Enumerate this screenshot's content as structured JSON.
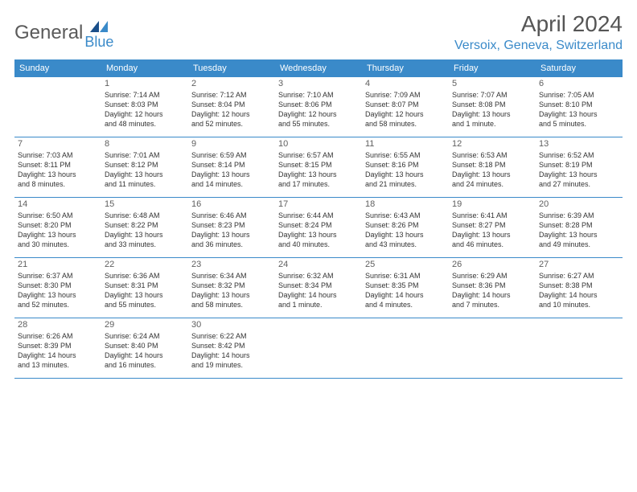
{
  "brand": {
    "general": "General",
    "blue": "Blue"
  },
  "title": "April 2024",
  "location": "Versoix, Geneva, Switzerland",
  "colors": {
    "accent": "#3a8ac9",
    "text": "#333333",
    "muted": "#5f5f5f",
    "bg": "#ffffff"
  },
  "daysOfWeek": [
    "Sunday",
    "Monday",
    "Tuesday",
    "Wednesday",
    "Thursday",
    "Friday",
    "Saturday"
  ],
  "weeks": [
    [
      {
        "num": "",
        "sunrise": "",
        "sunset": "",
        "daylight1": "",
        "daylight2": ""
      },
      {
        "num": "1",
        "sunrise": "Sunrise: 7:14 AM",
        "sunset": "Sunset: 8:03 PM",
        "daylight1": "Daylight: 12 hours",
        "daylight2": "and 48 minutes."
      },
      {
        "num": "2",
        "sunrise": "Sunrise: 7:12 AM",
        "sunset": "Sunset: 8:04 PM",
        "daylight1": "Daylight: 12 hours",
        "daylight2": "and 52 minutes."
      },
      {
        "num": "3",
        "sunrise": "Sunrise: 7:10 AM",
        "sunset": "Sunset: 8:06 PM",
        "daylight1": "Daylight: 12 hours",
        "daylight2": "and 55 minutes."
      },
      {
        "num": "4",
        "sunrise": "Sunrise: 7:09 AM",
        "sunset": "Sunset: 8:07 PM",
        "daylight1": "Daylight: 12 hours",
        "daylight2": "and 58 minutes."
      },
      {
        "num": "5",
        "sunrise": "Sunrise: 7:07 AM",
        "sunset": "Sunset: 8:08 PM",
        "daylight1": "Daylight: 13 hours",
        "daylight2": "and 1 minute."
      },
      {
        "num": "6",
        "sunrise": "Sunrise: 7:05 AM",
        "sunset": "Sunset: 8:10 PM",
        "daylight1": "Daylight: 13 hours",
        "daylight2": "and 5 minutes."
      }
    ],
    [
      {
        "num": "7",
        "sunrise": "Sunrise: 7:03 AM",
        "sunset": "Sunset: 8:11 PM",
        "daylight1": "Daylight: 13 hours",
        "daylight2": "and 8 minutes."
      },
      {
        "num": "8",
        "sunrise": "Sunrise: 7:01 AM",
        "sunset": "Sunset: 8:12 PM",
        "daylight1": "Daylight: 13 hours",
        "daylight2": "and 11 minutes."
      },
      {
        "num": "9",
        "sunrise": "Sunrise: 6:59 AM",
        "sunset": "Sunset: 8:14 PM",
        "daylight1": "Daylight: 13 hours",
        "daylight2": "and 14 minutes."
      },
      {
        "num": "10",
        "sunrise": "Sunrise: 6:57 AM",
        "sunset": "Sunset: 8:15 PM",
        "daylight1": "Daylight: 13 hours",
        "daylight2": "and 17 minutes."
      },
      {
        "num": "11",
        "sunrise": "Sunrise: 6:55 AM",
        "sunset": "Sunset: 8:16 PM",
        "daylight1": "Daylight: 13 hours",
        "daylight2": "and 21 minutes."
      },
      {
        "num": "12",
        "sunrise": "Sunrise: 6:53 AM",
        "sunset": "Sunset: 8:18 PM",
        "daylight1": "Daylight: 13 hours",
        "daylight2": "and 24 minutes."
      },
      {
        "num": "13",
        "sunrise": "Sunrise: 6:52 AM",
        "sunset": "Sunset: 8:19 PM",
        "daylight1": "Daylight: 13 hours",
        "daylight2": "and 27 minutes."
      }
    ],
    [
      {
        "num": "14",
        "sunrise": "Sunrise: 6:50 AM",
        "sunset": "Sunset: 8:20 PM",
        "daylight1": "Daylight: 13 hours",
        "daylight2": "and 30 minutes."
      },
      {
        "num": "15",
        "sunrise": "Sunrise: 6:48 AM",
        "sunset": "Sunset: 8:22 PM",
        "daylight1": "Daylight: 13 hours",
        "daylight2": "and 33 minutes."
      },
      {
        "num": "16",
        "sunrise": "Sunrise: 6:46 AM",
        "sunset": "Sunset: 8:23 PM",
        "daylight1": "Daylight: 13 hours",
        "daylight2": "and 36 minutes."
      },
      {
        "num": "17",
        "sunrise": "Sunrise: 6:44 AM",
        "sunset": "Sunset: 8:24 PM",
        "daylight1": "Daylight: 13 hours",
        "daylight2": "and 40 minutes."
      },
      {
        "num": "18",
        "sunrise": "Sunrise: 6:43 AM",
        "sunset": "Sunset: 8:26 PM",
        "daylight1": "Daylight: 13 hours",
        "daylight2": "and 43 minutes."
      },
      {
        "num": "19",
        "sunrise": "Sunrise: 6:41 AM",
        "sunset": "Sunset: 8:27 PM",
        "daylight1": "Daylight: 13 hours",
        "daylight2": "and 46 minutes."
      },
      {
        "num": "20",
        "sunrise": "Sunrise: 6:39 AM",
        "sunset": "Sunset: 8:28 PM",
        "daylight1": "Daylight: 13 hours",
        "daylight2": "and 49 minutes."
      }
    ],
    [
      {
        "num": "21",
        "sunrise": "Sunrise: 6:37 AM",
        "sunset": "Sunset: 8:30 PM",
        "daylight1": "Daylight: 13 hours",
        "daylight2": "and 52 minutes."
      },
      {
        "num": "22",
        "sunrise": "Sunrise: 6:36 AM",
        "sunset": "Sunset: 8:31 PM",
        "daylight1": "Daylight: 13 hours",
        "daylight2": "and 55 minutes."
      },
      {
        "num": "23",
        "sunrise": "Sunrise: 6:34 AM",
        "sunset": "Sunset: 8:32 PM",
        "daylight1": "Daylight: 13 hours",
        "daylight2": "and 58 minutes."
      },
      {
        "num": "24",
        "sunrise": "Sunrise: 6:32 AM",
        "sunset": "Sunset: 8:34 PM",
        "daylight1": "Daylight: 14 hours",
        "daylight2": "and 1 minute."
      },
      {
        "num": "25",
        "sunrise": "Sunrise: 6:31 AM",
        "sunset": "Sunset: 8:35 PM",
        "daylight1": "Daylight: 14 hours",
        "daylight2": "and 4 minutes."
      },
      {
        "num": "26",
        "sunrise": "Sunrise: 6:29 AM",
        "sunset": "Sunset: 8:36 PM",
        "daylight1": "Daylight: 14 hours",
        "daylight2": "and 7 minutes."
      },
      {
        "num": "27",
        "sunrise": "Sunrise: 6:27 AM",
        "sunset": "Sunset: 8:38 PM",
        "daylight1": "Daylight: 14 hours",
        "daylight2": "and 10 minutes."
      }
    ],
    [
      {
        "num": "28",
        "sunrise": "Sunrise: 6:26 AM",
        "sunset": "Sunset: 8:39 PM",
        "daylight1": "Daylight: 14 hours",
        "daylight2": "and 13 minutes."
      },
      {
        "num": "29",
        "sunrise": "Sunrise: 6:24 AM",
        "sunset": "Sunset: 8:40 PM",
        "daylight1": "Daylight: 14 hours",
        "daylight2": "and 16 minutes."
      },
      {
        "num": "30",
        "sunrise": "Sunrise: 6:22 AM",
        "sunset": "Sunset: 8:42 PM",
        "daylight1": "Daylight: 14 hours",
        "daylight2": "and 19 minutes."
      },
      {
        "num": "",
        "sunrise": "",
        "sunset": "",
        "daylight1": "",
        "daylight2": ""
      },
      {
        "num": "",
        "sunrise": "",
        "sunset": "",
        "daylight1": "",
        "daylight2": ""
      },
      {
        "num": "",
        "sunrise": "",
        "sunset": "",
        "daylight1": "",
        "daylight2": ""
      },
      {
        "num": "",
        "sunrise": "",
        "sunset": "",
        "daylight1": "",
        "daylight2": ""
      }
    ]
  ]
}
